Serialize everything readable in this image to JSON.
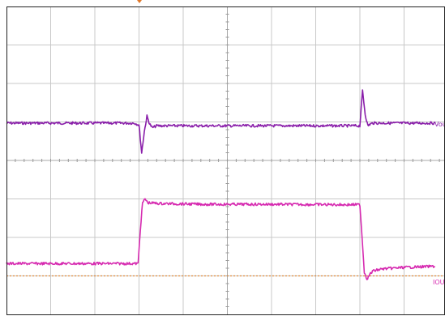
{
  "chart_data": {
    "type": "line",
    "grid": true,
    "x_divisions": 10,
    "y_divisions": 8,
    "xlim": [
      0,
      10
    ],
    "ylim": [
      0,
      8
    ],
    "trigger_position": 3.05,
    "series": [
      {
        "name": "Vou",
        "color": "#8a1faa",
        "x": [
          0,
          2.9,
          3.0,
          3.06,
          3.12,
          3.18,
          3.24,
          3.3,
          3.4,
          3.6,
          4.5,
          6.5,
          8.0,
          8.0,
          8.06,
          8.12,
          8.18,
          8.24,
          8.3,
          8.4,
          8.6,
          9.7
        ],
        "y": [
          4.97,
          4.97,
          4.92,
          4.2,
          4.75,
          5.15,
          4.95,
          4.85,
          4.9,
          4.9,
          4.9,
          4.9,
          4.9,
          4.9,
          5.82,
          5.2,
          4.9,
          4.95,
          4.97,
          4.97,
          4.97,
          4.97
        ]
      },
      {
        "name": "IOU",
        "color": "#d62ab0",
        "x": [
          0,
          2.98,
          3.03,
          3.08,
          3.14,
          3.2,
          3.5,
          4.5,
          6.0,
          7.6,
          8.0,
          8.05,
          8.1,
          8.16,
          8.24,
          8.3,
          8.5,
          9.0,
          9.7
        ],
        "y": [
          1.32,
          1.32,
          2.2,
          2.9,
          3.0,
          2.9,
          2.88,
          2.86,
          2.86,
          2.85,
          2.85,
          2.0,
          1.1,
          0.92,
          1.06,
          1.13,
          1.18,
          1.22,
          1.25
        ]
      }
    ],
    "reference": {
      "name": "zero",
      "color": "#e08a3a",
      "y": 1.0
    }
  },
  "labels": {
    "ch1": "Vou",
    "ch2": "IOU"
  }
}
